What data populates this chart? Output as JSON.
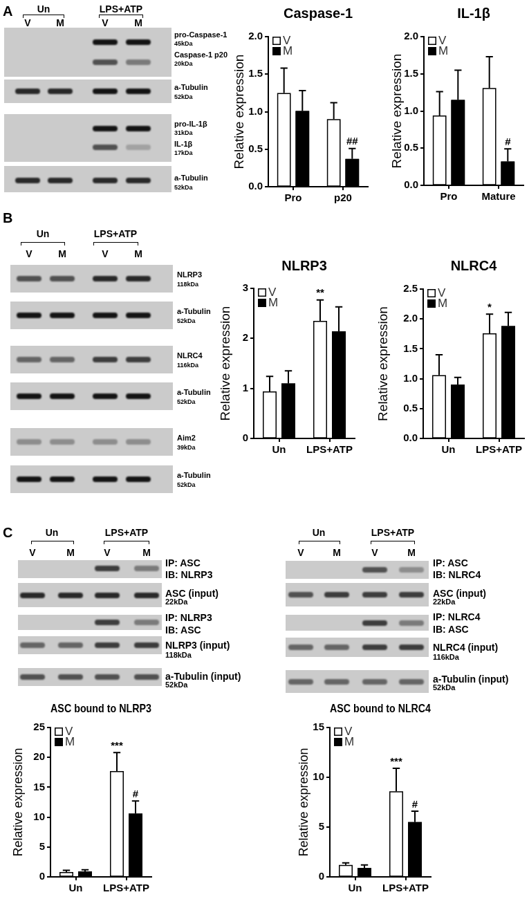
{
  "chart_data": [
    {
      "type": "other",
      "title": "A",
      "categories": [
        "V",
        "M",
        "V",
        "M"
      ],
      "annotations": [
        "Un",
        "LPS+ATP",
        "pro-Caspase-1",
        "45kDa",
        "Caspase-1 p20",
        "20kDa",
        "a-Tubulin",
        "52kDa",
        "pro-IL-1β",
        "31kDa",
        "IL-1β",
        "17kDa",
        "a-Tubulin",
        "52kDa"
      ]
    },
    {
      "type": "bar",
      "title": "Caspase-1",
      "ylabel": "Relative expression",
      "categories": [
        "Pro",
        "p20"
      ],
      "series": [
        {
          "name": "V",
          "color": "#ffffff",
          "values": [
            1.25,
            0.9
          ],
          "errors": [
            [
              1.25,
              1.58
            ],
            [
              0.9,
              1.12
            ]
          ]
        },
        {
          "name": "M",
          "color": "#000000",
          "values": [
            1.01,
            0.37
          ],
          "errors": [
            [
              1.01,
              1.28
            ],
            [
              0.37,
              0.51
            ]
          ],
          "value_labels": [
            null,
            "##"
          ]
        }
      ],
      "ylim": [
        0,
        2
      ],
      "yticks": [
        {
          "value": 0,
          "label": "0.0"
        },
        0.5,
        {
          "value": 1,
          "label": "1.0"
        },
        1.5,
        {
          "value": 2,
          "label": "2.0"
        }
      ],
      "legend": "top left",
      "grid": false
    },
    {
      "type": "bar",
      "title": "IL-1β",
      "ylabel": "Relative expression",
      "categories": [
        "Pro",
        "Mature"
      ],
      "series": [
        {
          "name": "V",
          "color": "#ffffff",
          "values": [
            0.94,
            1.31
          ],
          "errors": [
            [
              0.94,
              1.26
            ],
            [
              1.31,
              1.73
            ]
          ]
        },
        {
          "name": "M",
          "color": "#000000",
          "values": [
            1.15,
            0.32
          ],
          "errors": [
            [
              1.15,
              1.55
            ],
            [
              0.32,
              0.49
            ]
          ],
          "value_labels": [
            null,
            "#"
          ]
        }
      ],
      "ylim": [
        0,
        2
      ],
      "yticks": [
        {
          "value": 0,
          "label": "0.0"
        },
        0.5,
        {
          "value": 1,
          "label": "1.0"
        },
        1.5,
        {
          "value": 2,
          "label": "2.0"
        }
      ],
      "legend": "top left",
      "grid": false
    },
    {
      "type": "other",
      "title": "B",
      "categories": [
        "V",
        "M",
        "V",
        "M"
      ],
      "annotations": [
        "Un",
        "LPS+ATP",
        "NLRP3",
        "118kDa",
        "a-Tubulin",
        "52kDa",
        "NLRC4",
        "116kDa",
        "a-Tubulin",
        "52kDa",
        "Aim2",
        "39kDa",
        "a-Tubulin",
        "52kDa"
      ]
    },
    {
      "type": "bar",
      "title": "NLRP3",
      "ylabel": "Relative expression",
      "categories": [
        "Un",
        "LPS+ATP"
      ],
      "series": [
        {
          "name": "V",
          "color": "#ffffff",
          "values": [
            0.94,
            2.35
          ],
          "errors": [
            [
              0.94,
              1.24
            ],
            [
              2.35,
              2.77
            ]
          ],
          "value_labels": [
            null,
            "**"
          ]
        },
        {
          "name": "M",
          "color": "#000000",
          "values": [
            1.1,
            2.14
          ],
          "errors": [
            [
              1.1,
              1.35
            ],
            [
              2.14,
              2.63
            ]
          ]
        }
      ],
      "ylim": [
        0,
        3
      ],
      "yticks": [
        0,
        1,
        2,
        3
      ],
      "legend": "top left",
      "grid": false
    },
    {
      "type": "bar",
      "title": "NLRC4",
      "ylabel": "Relative expression",
      "categories": [
        "Un",
        "LPS+ATP"
      ],
      "series": [
        {
          "name": "V",
          "color": "#ffffff",
          "values": [
            1.06,
            1.76
          ],
          "errors": [
            [
              1.06,
              1.4
            ],
            [
              1.76,
              2.08
            ]
          ],
          "value_labels": [
            null,
            "*"
          ]
        },
        {
          "name": "M",
          "color": "#000000",
          "values": [
            0.9,
            1.88
          ],
          "errors": [
            [
              0.9,
              1.02
            ],
            [
              1.88,
              2.11
            ]
          ]
        }
      ],
      "ylim": [
        0,
        2.5
      ],
      "yticks": [
        {
          "value": 0,
          "label": "0.0"
        },
        0.5,
        {
          "value": 1,
          "label": "1.0"
        },
        1.5,
        {
          "value": 2,
          "label": "2.0"
        },
        2.5
      ],
      "legend": "top left",
      "grid": false
    },
    {
      "type": "other",
      "title": "C",
      "categories": [
        "V",
        "M",
        "V",
        "M"
      ],
      "annotations": [
        "Un",
        "LPS+ATP",
        "IP: ASC",
        "IB: NLRP3",
        "ASC (input)",
        "22kDa",
        "IP: NLRP3",
        "IB: ASC",
        "NLRP3 (input)",
        "118kDa",
        "a-Tubulin (input)",
        "52kDa"
      ]
    },
    {
      "type": "other",
      "categories": [
        "V",
        "M",
        "V",
        "M"
      ],
      "annotations": [
        "Un",
        "LPS+ATP",
        "IP: ASC",
        "IB: NLRC4",
        "ASC (input)",
        "22kDa",
        "IP: NLRC4",
        "IB: ASC",
        "NLRC4 (input)",
        "116kDa",
        "a-Tubulin (input)",
        "52kDa"
      ]
    },
    {
      "type": "bar",
      "title": "ASC bound to NLRP3",
      "ylabel": "Relative expression",
      "categories": [
        "Un",
        "LPS+ATP"
      ],
      "series": [
        {
          "name": "V",
          "color": "#ffffff",
          "values": [
            0.8,
            17.7
          ],
          "errors": [
            [
              0.8,
              1.1
            ],
            [
              17.7,
              20.8
            ]
          ],
          "value_labels": [
            null,
            "***"
          ]
        },
        {
          "name": "M",
          "color": "#000000",
          "values": [
            0.9,
            10.6
          ],
          "errors": [
            [
              0.9,
              1.2
            ],
            [
              10.6,
              12.7
            ]
          ],
          "value_labels": [
            null,
            "#"
          ]
        }
      ],
      "ylim": [
        0,
        25
      ],
      "yticks": [
        0,
        5,
        10,
        15,
        20,
        25
      ],
      "legend": "top left",
      "grid": false
    },
    {
      "type": "bar",
      "title": "ASC bound to NLRC4",
      "ylabel": "Relative expression",
      "categories": [
        "Un",
        "LPS+ATP"
      ],
      "series": [
        {
          "name": "V",
          "color": "#ffffff",
          "values": [
            1.2,
            8.6
          ],
          "errors": [
            [
              1.2,
              1.4
            ],
            [
              8.6,
              10.9
            ]
          ],
          "value_labels": [
            null,
            "***"
          ]
        },
        {
          "name": "M",
          "color": "#000000",
          "values": [
            0.9,
            5.5
          ],
          "errors": [
            [
              0.9,
              1.2
            ],
            [
              5.5,
              6.6
            ]
          ],
          "value_labels": [
            null,
            "#"
          ]
        }
      ],
      "ylim": [
        0,
        15
      ],
      "yticks": [
        0,
        5,
        10,
        15
      ],
      "legend": "top left",
      "grid": false
    }
  ]
}
